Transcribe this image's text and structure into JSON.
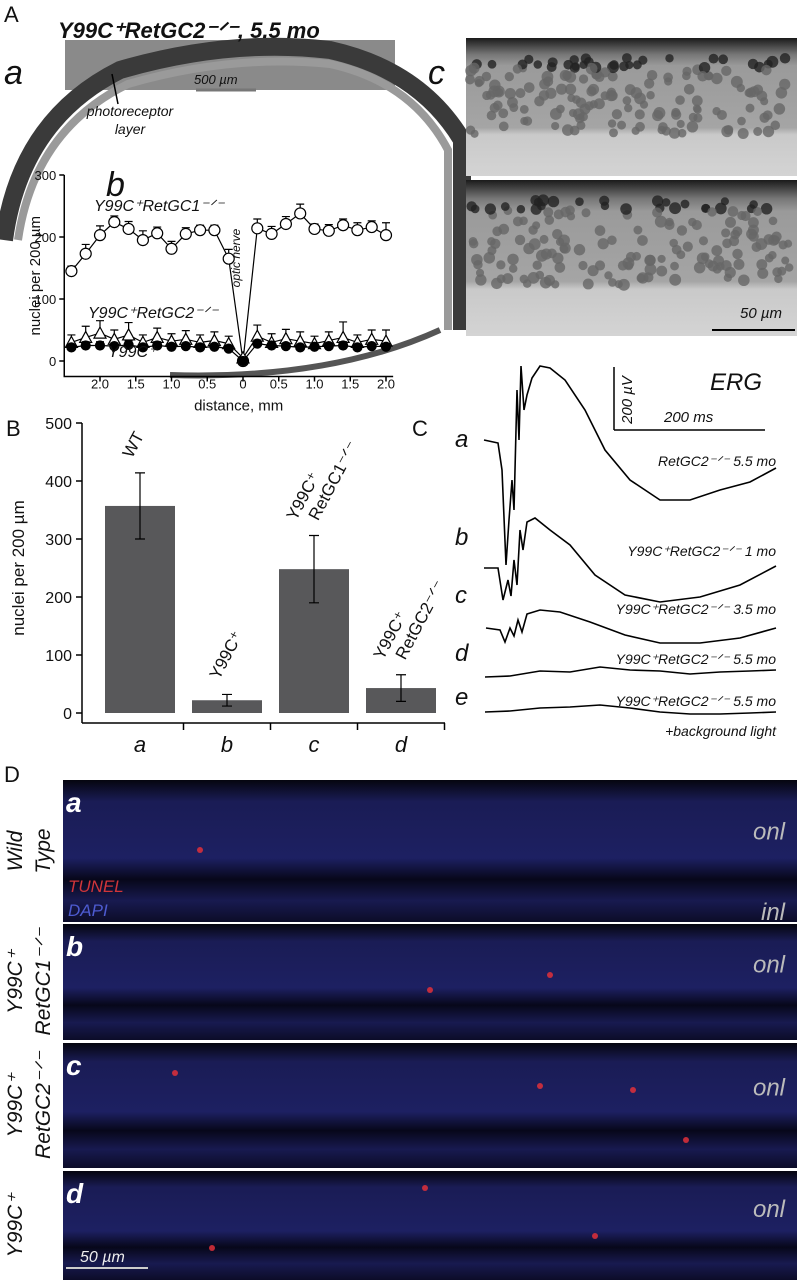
{
  "chart_data": [
    {
      "type": "line",
      "title": "b",
      "x_label": "distance, mm",
      "y_label": "nuclei per 200 µm",
      "annotation": "optic nerve",
      "x": [
        -2.4,
        -2.2,
        -2.0,
        -1.8,
        -1.6,
        -1.4,
        -1.2,
        -1.0,
        -0.8,
        -0.6,
        -0.4,
        -0.2,
        0,
        0.2,
        0.4,
        0.6,
        0.8,
        1.0,
        1.2,
        1.4,
        1.6,
        1.8,
        2.0
      ],
      "xlim": [
        -2.5,
        2.1
      ],
      "xticks": [
        {
          "value": -2,
          "label": "2.0"
        },
        {
          "value": -1.5,
          "label": "1.5"
        },
        {
          "value": -1,
          "label": "1.0"
        },
        {
          "value": -0.5,
          "label": "0.5"
        },
        0,
        0.5,
        {
          "value": 1,
          "label": "1.0"
        },
        1.5,
        {
          "value": 2,
          "label": "2.0"
        }
      ],
      "ylim": [
        -25,
        300
      ],
      "yticks": [
        0,
        100,
        200,
        300
      ],
      "series": [
        {
          "name": "Y99C⁺RetGC1⁻ᐟ⁻",
          "color": "#000000",
          "marker": "open-circle",
          "values": [
            145,
            173,
            203,
            224,
            213,
            195,
            206,
            181,
            205,
            211,
            211,
            165,
            0,
            214,
            205,
            221,
            238,
            213,
            210,
            219,
            211,
            216,
            203
          ],
          "errors": [
            8,
            15,
            15,
            10,
            12,
            15,
            10,
            12,
            10,
            8,
            8,
            15,
            0,
            15,
            12,
            12,
            15,
            8,
            10,
            10,
            12,
            10,
            20
          ]
        },
        {
          "name": "Y99C⁺RetGC2⁻ᐟ⁻",
          "color": "#000000",
          "marker": "open-triangle",
          "values": [
            30,
            38,
            45,
            35,
            42,
            30,
            38,
            32,
            35,
            30,
            33,
            28,
            5,
            40,
            30,
            36,
            32,
            28,
            33,
            38,
            30,
            35,
            32
          ],
          "errors": [
            12,
            18,
            20,
            15,
            20,
            12,
            15,
            12,
            14,
            12,
            14,
            12,
            0,
            18,
            14,
            15,
            15,
            12,
            14,
            25,
            12,
            15,
            18
          ]
        },
        {
          "name": "Y99C⁺",
          "color": "#000000",
          "marker": "filled-circle",
          "values": [
            22,
            25,
            25,
            24,
            26,
            22,
            25,
            23,
            24,
            22,
            23,
            20,
            0,
            28,
            25,
            24,
            22,
            23,
            24,
            25,
            22,
            24,
            23
          ],
          "errors": [
            5,
            6,
            6,
            5,
            6,
            5,
            6,
            5,
            5,
            5,
            5,
            5,
            0,
            6,
            5,
            5,
            5,
            5,
            5,
            6,
            5,
            5,
            5
          ]
        }
      ]
    },
    {
      "type": "bar",
      "y_label": "nuclei per 200 µm",
      "categories": [
        "a",
        "b",
        "c",
        "d"
      ],
      "bar_labels": [
        [
          "WT"
        ],
        [
          "Y99C⁺"
        ],
        [
          "Y99C⁺",
          "RetGC1⁻ᐟ⁻"
        ],
        [
          "Y99C⁺",
          "RetGC2⁻ᐟ⁻"
        ]
      ],
      "values": [
        357,
        22,
        248,
        43
      ],
      "errors": [
        57,
        10,
        58,
        23
      ],
      "color": "#58585a",
      "ylim": [
        0,
        500
      ],
      "yticks": [
        0,
        100,
        200,
        300,
        400,
        500
      ]
    }
  ],
  "panel_A": {
    "label": "A",
    "title": "Y99C⁺RetGC2⁻ᐟ⁻, 5.5 mo",
    "sub_a": "a",
    "scale_bar": "500 µm",
    "annotation": [
      "photoreceptor",
      "layer"
    ],
    "sub_c": "c",
    "scale_bar_c": "50 µm"
  },
  "panel_B": {
    "label": "B"
  },
  "panel_C": {
    "label": "C",
    "title": "ERG",
    "scale_y": "200 µV",
    "scale_x": "200 ms",
    "traces": [
      {
        "letter": "a",
        "label": "RetGC2⁻ᐟ⁻ 5.5 mo"
      },
      {
        "letter": "b",
        "label": "Y99C⁺RetGC2⁻ᐟ⁻   1 mo"
      },
      {
        "letter": "c",
        "label": "Y99C⁺RetGC2⁻ᐟ⁻ 3.5 mo"
      },
      {
        "letter": "d",
        "label": "Y99C⁺RetGC2⁻ᐟ⁻ 5.5 mo"
      },
      {
        "letter": "e",
        "label": "Y99C⁺RetGC2⁻ᐟ⁻ 5.5 mo"
      }
    ],
    "note": "+background light"
  },
  "panel_D": {
    "label": "D",
    "legend": [
      "TUNEL",
      "DAPI"
    ],
    "inl": "inl",
    "scale_bar": "50 µm",
    "rows": [
      {
        "letter": "a",
        "genotype": [
          "Wild",
          "Type"
        ],
        "layer": "onl"
      },
      {
        "letter": "b",
        "genotype": [
          "Y99C⁺",
          "RetGC1⁻ᐟ⁻"
        ],
        "layer": "onl"
      },
      {
        "letter": "c",
        "genotype": [
          "Y99C⁺",
          "RetGC2⁻ᐟ⁻"
        ],
        "layer": "onl"
      },
      {
        "letter": "d",
        "genotype": [
          "Y99C⁺"
        ],
        "layer": "onl"
      }
    ]
  }
}
